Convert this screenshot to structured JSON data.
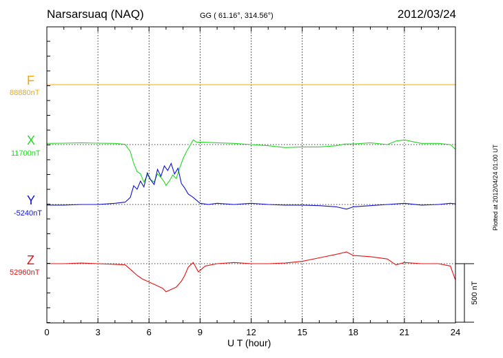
{
  "header": {
    "station": "Narsarsuaq (NAQ)",
    "coords": "GG ( 61.16°, 314.56°)",
    "date": "2012/03/24"
  },
  "footer": {
    "plotted": "Plotted at 2012/04/24 01:00 UT"
  },
  "colors": {
    "F": "#f5a800",
    "X": "#22d822",
    "Y": "#1010d0",
    "Z": "#e81010"
  },
  "chart_data": {
    "type": "line",
    "xlabel": "U T (hour)",
    "xlim": [
      0,
      24
    ],
    "xticks": [
      "0",
      "3",
      "6",
      "9",
      "12",
      "15",
      "18",
      "21",
      "24"
    ],
    "scale_label": "500 nT",
    "scale_nT": 500,
    "series": [
      {
        "name": "F",
        "baseline": "88880nT",
        "color": "#f5a800",
        "x": [
          0,
          24
        ],
        "y": [
          0,
          0
        ]
      },
      {
        "name": "X",
        "baseline": "11700nT",
        "color": "#22d822",
        "x": [
          0,
          1,
          2,
          3,
          4,
          4.6,
          4.9,
          5.1,
          5.3,
          5.5,
          5.7,
          5.9,
          6.1,
          6.3,
          6.5,
          6.7,
          6.9,
          7.0,
          7.2,
          7.4,
          7.6,
          7.8,
          8.0,
          8.2,
          8.4,
          8.6,
          8.8,
          9.2,
          10,
          11,
          12,
          13,
          14,
          15,
          16,
          17,
          17.5,
          18,
          18.5,
          19,
          20,
          20.5,
          21,
          21.5,
          22,
          23,
          23.7,
          24
        ],
        "y": [
          10,
          12,
          15,
          12,
          10,
          2,
          -60,
          -160,
          -230,
          -250,
          -320,
          -260,
          -300,
          -320,
          -250,
          -280,
          -320,
          -350,
          -310,
          -260,
          -290,
          -200,
          -120,
          -60,
          -10,
          40,
          20,
          20,
          15,
          10,
          0,
          -10,
          -25,
          -20,
          -20,
          -10,
          5,
          5,
          10,
          15,
          0,
          30,
          40,
          25,
          10,
          10,
          0,
          -40
        ]
      },
      {
        "name": "Y",
        "baseline": "-5240nT",
        "color": "#1010d0",
        "x": [
          0,
          1,
          2,
          3,
          4,
          4.6,
          4.9,
          5.1,
          5.3,
          5.5,
          5.7,
          5.9,
          6.1,
          6.3,
          6.5,
          6.7,
          6.9,
          7.1,
          7.3,
          7.5,
          7.7,
          7.9,
          8.1,
          8.3,
          8.6,
          9.0,
          9.5,
          10,
          11,
          12,
          13,
          14,
          15,
          16,
          17,
          17.6,
          18,
          19,
          20,
          21,
          22,
          23,
          23.7,
          24
        ],
        "y": [
          -5,
          -5,
          0,
          0,
          10,
          20,
          60,
          160,
          130,
          200,
          150,
          270,
          210,
          170,
          300,
          240,
          330,
          290,
          350,
          260,
          310,
          180,
          140,
          90,
          60,
          10,
          0,
          10,
          0,
          10,
          0,
          -5,
          -5,
          -10,
          -20,
          -40,
          -20,
          -10,
          0,
          10,
          -5,
          0,
          10,
          5
        ]
      },
      {
        "name": "Z",
        "baseline": "52960nT",
        "color": "#e81010",
        "x": [
          0,
          1,
          2,
          3,
          4,
          4.6,
          5.0,
          5.3,
          5.6,
          5.9,
          6.2,
          6.5,
          6.8,
          7.0,
          7.3,
          7.6,
          7.9,
          8.1,
          8.3,
          8.6,
          8.9,
          9.3,
          10,
          11,
          12,
          13,
          14,
          15,
          16,
          17,
          17.6,
          18,
          19,
          20,
          20.5,
          21,
          22,
          23,
          23.7,
          24
        ],
        "y": [
          0,
          0,
          5,
          0,
          -5,
          -10,
          -60,
          -100,
          -130,
          -150,
          -170,
          -190,
          -210,
          -240,
          -220,
          -200,
          -150,
          -100,
          -30,
          10,
          -70,
          -20,
          0,
          10,
          0,
          0,
          5,
          20,
          50,
          80,
          100,
          70,
          60,
          40,
          -10,
          10,
          0,
          0,
          -20,
          -140
        ]
      }
    ]
  }
}
